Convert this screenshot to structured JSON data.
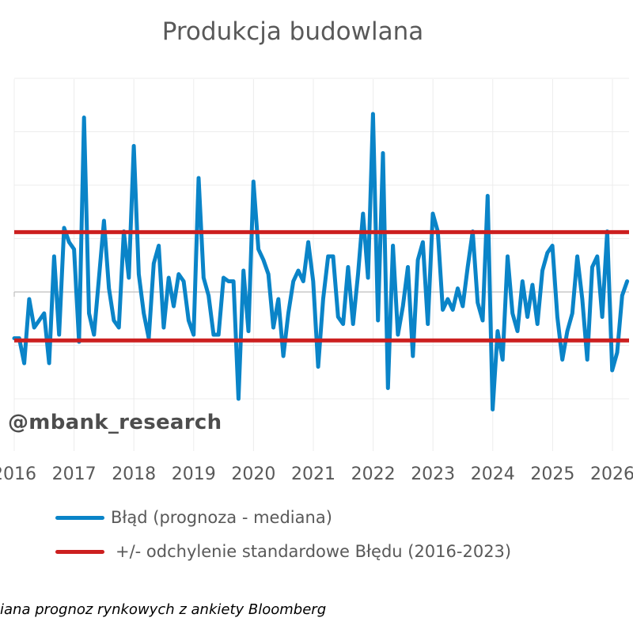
{
  "chart_data": {
    "type": "line",
    "title": "Produkcja budowlana",
    "xlabel": "",
    "ylabel": "",
    "x_tick_labels": [
      "2016",
      "2017",
      "2018",
      "2019",
      "2020",
      "2021",
      "2022",
      "2023",
      "2024",
      "2025",
      "2026"
    ],
    "x_range": [
      2016,
      2026.65
    ],
    "y_range": [
      -2.4,
      3.4
    ],
    "grid": true,
    "series": [
      {
        "name": "Błąd (prognoza - mediana)",
        "color": "#0a84c8",
        "x_start": 2016.0,
        "x_step": 0.0833,
        "values": [
          -0.65,
          -0.65,
          -1.0,
          -0.1,
          -0.5,
          -0.4,
          -0.3,
          -1.0,
          0.5,
          -0.6,
          0.9,
          0.7,
          0.6,
          -0.7,
          2.45,
          -0.3,
          -0.6,
          0.2,
          1.0,
          0.05,
          -0.4,
          -0.5,
          0.85,
          0.2,
          2.05,
          0.25,
          -0.3,
          -0.65,
          0.4,
          0.65,
          -0.5,
          0.2,
          -0.2,
          0.25,
          0.15,
          -0.4,
          -0.6,
          1.6,
          0.2,
          -0.05,
          -0.6,
          -0.6,
          0.2,
          0.15,
          0.15,
          -1.5,
          0.3,
          -0.55,
          1.55,
          0.6,
          0.45,
          0.25,
          -0.5,
          -0.1,
          -0.9,
          -0.3,
          0.15,
          0.3,
          0.15,
          0.7,
          0.15,
          -1.05,
          -0.1,
          0.5,
          0.5,
          -0.35,
          -0.45,
          0.35,
          -0.45,
          0.25,
          1.1,
          0.2,
          2.5,
          -0.4,
          1.95,
          -1.35,
          0.65,
          -0.6,
          -0.2,
          0.35,
          -0.9,
          0.45,
          0.7,
          -0.45,
          1.1,
          0.85,
          -0.25,
          -0.1,
          -0.25,
          0.05,
          -0.2,
          0.35,
          0.85,
          -0.15,
          -0.4,
          1.35,
          -1.65,
          -0.55,
          -0.95,
          0.5,
          -0.3,
          -0.55,
          0.15,
          -0.35,
          0.1,
          -0.45,
          0.3,
          0.55,
          0.65,
          -0.35,
          -0.95,
          -0.55,
          -0.3,
          0.5,
          -0.1,
          -0.95,
          0.35,
          0.5,
          -0.35,
          0.85,
          -1.1,
          -0.85,
          -0.05,
          0.15
        ]
      },
      {
        "name": "+/- odchylenie standardowe Błędu (2016-2023)",
        "color": "#cc1f1f",
        "upper": 0.84,
        "lower": -0.68
      }
    ],
    "legend_placement": "bottom"
  },
  "watermark": "@mbank_research",
  "footnote": "iana prognoz rynkowych z ankiety Bloomberg"
}
